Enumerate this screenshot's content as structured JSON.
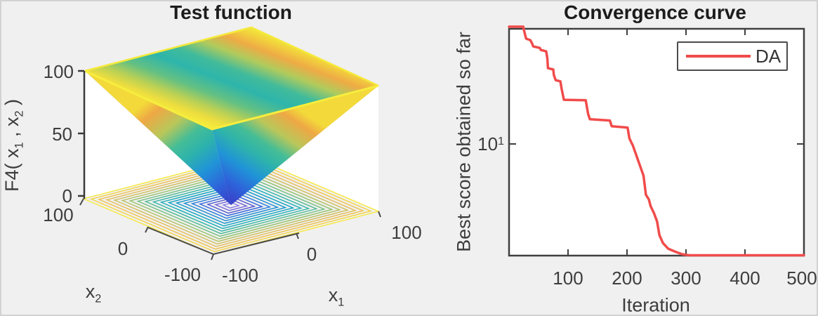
{
  "figure": {
    "background_color": "#f0f0f0",
    "plot_background_color": "#ffffff",
    "axis_color": "#3f3f3f",
    "tick_text_color": "#3d3d3d"
  },
  "left_plot": {
    "title": "Test function",
    "zlabel": {
      "p1": "F4( x",
      "s1": "1",
      "p2": " , x",
      "s2": "2",
      "p3": " )"
    },
    "z_ticks": [
      "100",
      "50",
      "0"
    ],
    "x2_ticks": [
      "100",
      "0",
      "-100"
    ],
    "x1_ticks": [
      "-100",
      "0",
      "100"
    ],
    "x1_label": {
      "base": "x",
      "sub": "1"
    },
    "x2_label": {
      "base": "x",
      "sub": "2"
    }
  },
  "right_plot": {
    "title": "Convergence curve",
    "ylabel": "Best score obtained so far",
    "xlabel": "Iteration",
    "x_ticks": [
      "100",
      "200",
      "300",
      "400",
      "500"
    ],
    "y_tick": {
      "base": "10",
      "sup": "1"
    },
    "legend": {
      "label": "DA"
    }
  },
  "chart_data": [
    {
      "type": "surface",
      "title": "Test function",
      "zlabel": "F4( x1 , x2 )",
      "xlabel": "x1",
      "ylabel": "x2",
      "x_range": [
        -100,
        100
      ],
      "y_range": [
        -100,
        100
      ],
      "z_range": [
        0,
        100
      ],
      "x_ticks": [
        -100,
        0,
        100
      ],
      "y_ticks": [
        -100,
        0,
        100
      ],
      "z_ticks": [
        0,
        50,
        100
      ],
      "shape": "inverted-pyramid surface (value rises linearly from 0 at center to 100 at domain edge) with concentric square contour projection on the floor",
      "colormap": "parula",
      "contour_colors": [
        "#8679e8",
        "#7161d9",
        "#4f55cf",
        "#2e63dd",
        "#1f78dc",
        "#1b8ad2",
        "#1297cb",
        "#0da2c3",
        "#15adb7",
        "#2fb4a4",
        "#4cba90",
        "#6fbe7c",
        "#93c16a",
        "#b3c05e",
        "#cfbd58",
        "#e3bc53",
        "#eec04a",
        "#f4d23f",
        "#f7e839"
      ]
    },
    {
      "type": "line",
      "title": "Convergence curve",
      "xlabel": "Iteration",
      "ylabel": "Best score obtained so far",
      "xlim": [
        0,
        500
      ],
      "x_ticks": [
        100,
        200,
        300,
        400,
        500
      ],
      "y_scale": "log",
      "y_ticks": [
        10
      ],
      "ylim": [
        2.55,
        42
      ],
      "grid": false,
      "legend_position": "top-right",
      "series": [
        {
          "name": "DA",
          "color": "#f14b4b",
          "points": [
            [
              0,
              41.9
            ],
            [
              24,
              41.9
            ],
            [
              27,
              37.8
            ],
            [
              29,
              35.9
            ],
            [
              36,
              35.3
            ],
            [
              39,
              33.9
            ],
            [
              41,
              32.7
            ],
            [
              52,
              32.1
            ],
            [
              54,
              31.3
            ],
            [
              63,
              30.8
            ],
            [
              65,
              28.1
            ],
            [
              66,
              25.1
            ],
            [
              75,
              24.7
            ],
            [
              76,
              23.1
            ],
            [
              79,
              21.7
            ],
            [
              87,
              21.4
            ],
            [
              89,
              19.6
            ],
            [
              93,
              17.1
            ],
            [
              130,
              17.0
            ],
            [
              134,
              14.4
            ],
            [
              137,
              13.5
            ],
            [
              171,
              13.3
            ],
            [
              174,
              12.4
            ],
            [
              201,
              12.2
            ],
            [
              204,
              10.7
            ],
            [
              210,
              9.8
            ],
            [
              228,
              6.8
            ],
            [
              232,
              5.4
            ],
            [
              237,
              5.1
            ],
            [
              240,
              4.7
            ],
            [
              246,
              4.3
            ],
            [
              251,
              3.9
            ],
            [
              255,
              3.3
            ],
            [
              261,
              3.0
            ],
            [
              270,
              2.8
            ],
            [
              282,
              2.7
            ],
            [
              294,
              2.62
            ],
            [
              305,
              2.58
            ],
            [
              500,
              2.58
            ]
          ]
        }
      ]
    }
  ]
}
